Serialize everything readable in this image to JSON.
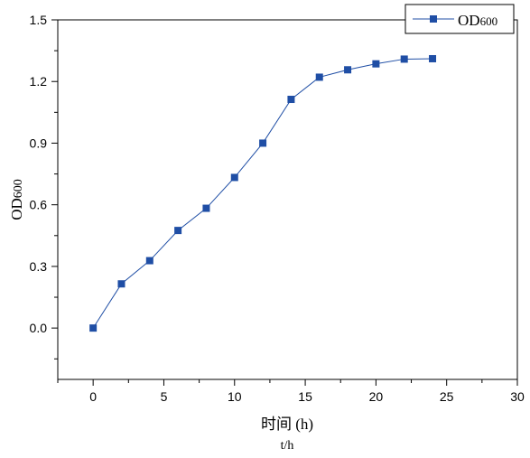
{
  "chart_data": {
    "type": "line",
    "title": "",
    "xlabel": "时间 (h)",
    "xlabel_secondary": "t/h",
    "ylabel": "OD600",
    "ylabel_main": "OD",
    "ylabel_sub": "600",
    "xlim": [
      -2.5,
      30
    ],
    "ylim": [
      -0.25,
      1.5
    ],
    "x_ticks": [
      0,
      5,
      10,
      15,
      20,
      25,
      30
    ],
    "y_ticks": [
      0.0,
      0.3,
      0.6,
      0.9,
      1.2,
      1.5
    ],
    "y_tick_labels": [
      "0.0",
      "0.3",
      "0.6",
      "0.9",
      "1.2",
      "1.5"
    ],
    "grid": false,
    "legend_position": "top-right",
    "series": [
      {
        "name": "OD600",
        "name_main": "OD",
        "name_sub": "600",
        "color": "#1f4ea5",
        "marker": "square",
        "x": [
          0,
          2,
          4,
          6,
          8,
          10,
          12,
          14,
          16,
          18,
          20,
          22,
          24
        ],
        "y": [
          0.0,
          0.215,
          0.328,
          0.475,
          0.583,
          0.733,
          0.9,
          1.113,
          1.221,
          1.257,
          1.286,
          1.309,
          1.311
        ]
      }
    ]
  }
}
